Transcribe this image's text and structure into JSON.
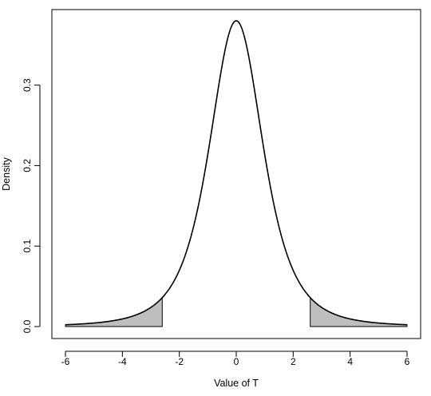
{
  "chart_data": {
    "type": "area",
    "xlabel": "Value of T",
    "ylabel": "Density",
    "xlim": [
      -6,
      6
    ],
    "ylim": [
      0,
      0.38
    ],
    "x_ticks": [
      -6,
      -4,
      -2,
      0,
      2,
      4,
      6
    ],
    "x_tick_labels": [
      "-6",
      "-4",
      "-2",
      "0",
      "2",
      "4",
      "6"
    ],
    "y_ticks": [
      0.0,
      0.1,
      0.2,
      0.3
    ],
    "y_tick_labels": [
      "0.0",
      "0.1",
      "0.2",
      "0.3"
    ],
    "series": [
      {
        "x": [
          -6,
          -5.5,
          -5,
          -4.5,
          -4,
          -3.5,
          -3,
          -2.6,
          -2.5,
          -2,
          -1.5,
          -1,
          -0.5,
          0,
          0.5,
          1,
          1.5,
          2,
          2.5,
          2.6,
          3,
          3.5,
          4,
          4.5,
          5,
          5.5,
          6
        ],
        "y": [
          0.0017,
          0.0025,
          0.004,
          0.0065,
          0.01,
          0.016,
          0.023,
          0.03,
          0.033,
          0.06,
          0.12,
          0.22,
          0.33,
          0.38,
          0.33,
          0.22,
          0.12,
          0.06,
          0.033,
          0.03,
          0.023,
          0.016,
          0.01,
          0.0065,
          0.004,
          0.0025,
          0.0017
        ]
      }
    ],
    "shaded_regions": [
      {
        "from": -6,
        "to": -2.6,
        "color": "#bebebe"
      },
      {
        "from": 2.6,
        "to": 6,
        "color": "#bebebe"
      }
    ],
    "grid": false,
    "line_color": "#000000"
  }
}
